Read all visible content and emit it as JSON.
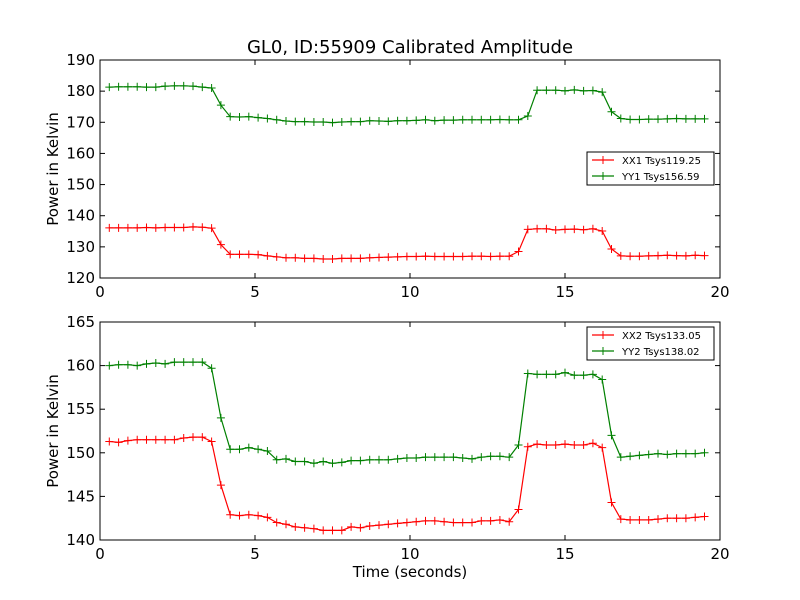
{
  "title": "GL0, ID:55909 Calibrated Amplitude",
  "x_axis_label": "Time (seconds)",
  "y_axis_label": "Power in Kelvin",
  "chart_data": [
    {
      "type": "line",
      "title": "GL0, ID:55909 Calibrated Amplitude",
      "xlabel": "",
      "ylabel": "Power in Kelvin",
      "xlim": [
        0,
        20
      ],
      "ylim": [
        120,
        190
      ],
      "xticks": [
        0,
        5,
        10,
        15,
        20
      ],
      "yticks": [
        120,
        130,
        140,
        150,
        160,
        170,
        180,
        190
      ],
      "legend_position": "center-right",
      "series": [
        {
          "name": "XX1 Tsys119.25",
          "color": "#ff0000",
          "x": [
            0.3,
            0.6,
            0.9,
            1.2,
            1.5,
            1.8,
            2.1,
            2.4,
            2.7,
            3.0,
            3.3,
            3.6,
            3.9,
            4.2,
            4.5,
            4.8,
            5.1,
            5.4,
            5.7,
            6.0,
            6.3,
            6.6,
            6.9,
            7.2,
            7.5,
            7.8,
            8.1,
            8.4,
            8.7,
            9.0,
            9.3,
            9.6,
            9.9,
            10.2,
            10.5,
            10.8,
            11.1,
            11.4,
            11.7,
            12.0,
            12.3,
            12.6,
            12.9,
            13.2,
            13.5,
            13.8,
            14.1,
            14.4,
            14.7,
            15.0,
            15.3,
            15.6,
            15.9,
            16.2,
            16.5,
            16.8,
            17.1,
            17.4,
            17.7,
            18.0,
            18.3,
            18.6,
            18.9,
            19.2,
            19.5
          ],
          "values": [
            136.1,
            136.1,
            136.1,
            136.1,
            136.2,
            136.1,
            136.2,
            136.2,
            136.2,
            136.4,
            136.3,
            136.0,
            130.7,
            127.6,
            127.6,
            127.6,
            127.5,
            127.1,
            126.8,
            126.5,
            126.5,
            126.3,
            126.3,
            126.1,
            126.1,
            126.3,
            126.3,
            126.3,
            126.5,
            126.6,
            126.7,
            126.8,
            126.9,
            126.9,
            127.0,
            126.9,
            126.9,
            126.9,
            126.9,
            127.0,
            127.0,
            126.9,
            127.0,
            127.0,
            128.5,
            135.6,
            135.8,
            135.8,
            135.4,
            135.6,
            135.7,
            135.5,
            135.8,
            135.1,
            129.3,
            127.1,
            127.0,
            127.0,
            127.1,
            127.2,
            127.3,
            127.2,
            127.1,
            127.3,
            127.2
          ]
        },
        {
          "name": "YY1 Tsys156.59",
          "color": "#008000",
          "x": [
            0.3,
            0.6,
            0.9,
            1.2,
            1.5,
            1.8,
            2.1,
            2.4,
            2.7,
            3.0,
            3.3,
            3.6,
            3.9,
            4.2,
            4.5,
            4.8,
            5.1,
            5.4,
            5.7,
            6.0,
            6.3,
            6.6,
            6.9,
            7.2,
            7.5,
            7.8,
            8.1,
            8.4,
            8.7,
            9.0,
            9.3,
            9.6,
            9.9,
            10.2,
            10.5,
            10.8,
            11.1,
            11.4,
            11.7,
            12.0,
            12.3,
            12.6,
            12.9,
            13.2,
            13.5,
            13.8,
            14.1,
            14.4,
            14.7,
            15.0,
            15.3,
            15.6,
            15.9,
            16.2,
            16.5,
            16.8,
            17.1,
            17.4,
            17.7,
            18.0,
            18.3,
            18.6,
            18.9,
            19.2,
            19.5
          ],
          "values": [
            181.3,
            181.4,
            181.4,
            181.4,
            181.3,
            181.3,
            181.6,
            181.7,
            181.7,
            181.6,
            181.3,
            181.0,
            175.5,
            171.8,
            171.7,
            171.8,
            171.5,
            171.2,
            170.8,
            170.4,
            170.2,
            170.2,
            170.1,
            170.1,
            169.9,
            170.1,
            170.2,
            170.2,
            170.5,
            170.4,
            170.3,
            170.5,
            170.5,
            170.6,
            170.8,
            170.5,
            170.7,
            170.7,
            170.8,
            170.8,
            170.8,
            170.8,
            170.9,
            170.8,
            170.8,
            172.0,
            180.3,
            180.3,
            180.3,
            180.1,
            180.4,
            180.1,
            180.2,
            179.7,
            173.4,
            171.2,
            170.9,
            170.9,
            171.0,
            171.0,
            171.1,
            171.2,
            171.1,
            171.1,
            171.1
          ]
        }
      ]
    },
    {
      "type": "line",
      "title": "",
      "xlabel": "Time (seconds)",
      "ylabel": "Power in Kelvin",
      "xlim": [
        0,
        20
      ],
      "ylim": [
        140,
        165
      ],
      "xticks": [
        0,
        5,
        10,
        15,
        20
      ],
      "yticks": [
        140,
        145,
        150,
        155,
        160,
        165
      ],
      "legend_position": "top-right",
      "series": [
        {
          "name": "XX2 Tsys133.05",
          "color": "#ff0000",
          "x": [
            0.3,
            0.6,
            0.9,
            1.2,
            1.5,
            1.8,
            2.1,
            2.4,
            2.7,
            3.0,
            3.3,
            3.6,
            3.9,
            4.2,
            4.5,
            4.8,
            5.1,
            5.4,
            5.7,
            6.0,
            6.3,
            6.6,
            6.9,
            7.2,
            7.5,
            7.8,
            8.1,
            8.4,
            8.7,
            9.0,
            9.3,
            9.6,
            9.9,
            10.2,
            10.5,
            10.8,
            11.1,
            11.4,
            11.7,
            12.0,
            12.3,
            12.6,
            12.9,
            13.2,
            13.5,
            13.8,
            14.1,
            14.4,
            14.7,
            15.0,
            15.3,
            15.6,
            15.9,
            16.2,
            16.5,
            16.8,
            17.1,
            17.4,
            17.7,
            18.0,
            18.3,
            18.6,
            18.9,
            19.2,
            19.5
          ],
          "values": [
            151.3,
            151.2,
            151.4,
            151.5,
            151.5,
            151.5,
            151.5,
            151.5,
            151.7,
            151.8,
            151.8,
            151.3,
            146.3,
            142.9,
            142.8,
            142.9,
            142.8,
            142.6,
            142.0,
            141.8,
            141.5,
            141.4,
            141.3,
            141.1,
            141.1,
            141.1,
            141.5,
            141.4,
            141.6,
            141.7,
            141.8,
            141.9,
            142.0,
            142.1,
            142.2,
            142.2,
            142.1,
            142.0,
            142.0,
            142.0,
            142.2,
            142.2,
            142.3,
            142.1,
            143.5,
            150.7,
            151.0,
            150.9,
            150.9,
            151.0,
            150.9,
            150.9,
            151.1,
            150.6,
            144.3,
            142.4,
            142.3,
            142.3,
            142.3,
            142.4,
            142.5,
            142.5,
            142.5,
            142.6,
            142.7
          ]
        },
        {
          "name": "YY2 Tsys138.02",
          "color": "#008000",
          "x": [
            0.3,
            0.6,
            0.9,
            1.2,
            1.5,
            1.8,
            2.1,
            2.4,
            2.7,
            3.0,
            3.3,
            3.6,
            3.9,
            4.2,
            4.5,
            4.8,
            5.1,
            5.4,
            5.7,
            6.0,
            6.3,
            6.6,
            6.9,
            7.2,
            7.5,
            7.8,
            8.1,
            8.4,
            8.7,
            9.0,
            9.3,
            9.6,
            9.9,
            10.2,
            10.5,
            10.8,
            11.1,
            11.4,
            11.7,
            12.0,
            12.3,
            12.6,
            12.9,
            13.2,
            13.5,
            13.8,
            14.1,
            14.4,
            14.7,
            15.0,
            15.3,
            15.6,
            15.9,
            16.2,
            16.5,
            16.8,
            17.1,
            17.4,
            17.7,
            18.0,
            18.3,
            18.6,
            18.9,
            19.2,
            19.5
          ],
          "values": [
            160.0,
            160.1,
            160.1,
            160.0,
            160.2,
            160.3,
            160.2,
            160.4,
            160.4,
            160.4,
            160.4,
            159.7,
            154.0,
            150.4,
            150.4,
            150.6,
            150.4,
            150.2,
            149.2,
            149.3,
            149.0,
            149.0,
            148.8,
            149.0,
            148.8,
            148.9,
            149.1,
            149.1,
            149.2,
            149.2,
            149.2,
            149.3,
            149.4,
            149.4,
            149.5,
            149.5,
            149.5,
            149.5,
            149.4,
            149.3,
            149.5,
            149.6,
            149.6,
            149.5,
            150.9,
            159.1,
            159.0,
            159.0,
            159.0,
            159.2,
            158.9,
            158.9,
            159.0,
            158.4,
            152.0,
            149.5,
            149.6,
            149.7,
            149.8,
            149.9,
            149.8,
            149.9,
            149.9,
            149.9,
            150.0
          ]
        }
      ]
    }
  ]
}
